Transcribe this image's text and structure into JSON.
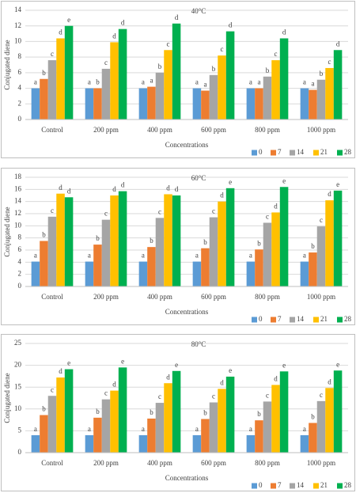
{
  "chart_data": [
    {
      "type": "bar",
      "title": "40°C",
      "y_label": "Conjugated diene",
      "x_label": "Concentrations",
      "categories": [
        "Control",
        "200 ppm",
        "400 ppm",
        "600 ppm",
        "800 ppm",
        "1000 ppm"
      ],
      "ylim": [
        0,
        14
      ],
      "yticks": [
        0,
        2,
        4,
        6,
        8,
        10,
        12,
        14
      ],
      "grid": true,
      "legend": "bottom-right",
      "series": [
        {
          "name": "0",
          "color": "#5b9bd5",
          "values": [
            4.0,
            4.0,
            4.0,
            4.0,
            4.0,
            4.0
          ],
          "letters": [
            "a",
            "a",
            "a",
            "a",
            "a",
            "a"
          ]
        },
        {
          "name": "7",
          "color": "#ed7d31",
          "values": [
            5.2,
            4.0,
            4.2,
            3.7,
            4.0,
            3.8
          ],
          "letters": [
            "b",
            "b",
            "a",
            "a",
            "a",
            "a"
          ]
        },
        {
          "name": "14",
          "color": "#a5a5a5",
          "values": [
            7.6,
            6.5,
            6.0,
            5.7,
            5.5,
            5.1
          ],
          "letters": [
            "c",
            "c",
            "b",
            "b",
            "b",
            "b"
          ]
        },
        {
          "name": "21",
          "color": "#ffc000",
          "values": [
            10.4,
            9.9,
            8.9,
            8.2,
            7.6,
            6.6
          ],
          "letters": [
            "d",
            "d",
            "c",
            "c",
            "c",
            "c"
          ]
        },
        {
          "name": "28",
          "color": "#00b050",
          "values": [
            12.0,
            11.6,
            12.3,
            11.3,
            10.4,
            8.9
          ],
          "letters": [
            "e",
            "d",
            "d",
            "d",
            "d",
            "d"
          ]
        }
      ]
    },
    {
      "type": "bar",
      "title": "60°C",
      "y_label": "Conjugated diene",
      "x_label": "Concentrations",
      "categories": [
        "Control",
        "200 ppm",
        "400 ppm",
        "600 ppm",
        "800 ppm",
        "1000 ppm"
      ],
      "ylim": [
        0,
        18
      ],
      "yticks": [
        0,
        2,
        4,
        6,
        8,
        10,
        12,
        14,
        16,
        18
      ],
      "grid": true,
      "legend": "bottom-right",
      "series": [
        {
          "name": "0",
          "color": "#5b9bd5",
          "values": [
            4.1,
            4.1,
            4.1,
            4.1,
            4.1,
            4.1
          ],
          "letters": [
            "a",
            "a",
            "a",
            "a",
            "a",
            "a"
          ]
        },
        {
          "name": "7",
          "color": "#ed7d31",
          "values": [
            7.5,
            6.9,
            6.5,
            6.3,
            6.1,
            5.6
          ],
          "letters": [
            "b",
            "b",
            "b",
            "b",
            "b",
            "b"
          ]
        },
        {
          "name": "14",
          "color": "#a5a5a5",
          "values": [
            11.5,
            11.0,
            11.3,
            11.4,
            10.5,
            9.9
          ],
          "letters": [
            "c",
            "c",
            "c",
            "c",
            "c",
            "c"
          ]
        },
        {
          "name": "21",
          "color": "#ffc000",
          "values": [
            15.3,
            15.0,
            15.2,
            14.0,
            12.2,
            14.2
          ],
          "letters": [
            "d",
            "d",
            "d",
            "d",
            "d",
            "d"
          ]
        },
        {
          "name": "28",
          "color": "#00b050",
          "values": [
            14.7,
            15.7,
            15.0,
            16.2,
            16.4,
            15.8
          ],
          "letters": [
            "d",
            "d",
            "d",
            "e",
            "e",
            "e"
          ]
        }
      ]
    },
    {
      "type": "bar",
      "title": "80°C",
      "y_label": "Conjugated diene",
      "x_label": "Concentrations",
      "categories": [
        "Control",
        "200 ppm",
        "400 ppm",
        "600 ppm",
        "800 ppm",
        "1000 ppm"
      ],
      "ylim": [
        0,
        25
      ],
      "yticks": [
        0,
        5,
        10,
        15,
        20,
        25
      ],
      "grid": true,
      "legend": "bottom-right",
      "series": [
        {
          "name": "0",
          "color": "#5b9bd5",
          "values": [
            4.0,
            4.0,
            4.0,
            4.0,
            4.0,
            4.0
          ],
          "letters": [
            "a",
            "a",
            "a",
            "a",
            "a",
            "a"
          ]
        },
        {
          "name": "7",
          "color": "#ed7d31",
          "values": [
            8.6,
            8.0,
            7.8,
            7.7,
            7.4,
            6.8
          ],
          "letters": [
            "b",
            "b",
            "b",
            "b",
            "b",
            "b"
          ]
        },
        {
          "name": "14",
          "color": "#a5a5a5",
          "values": [
            13.0,
            12.2,
            11.4,
            11.5,
            11.7,
            11.8
          ],
          "letters": [
            "c",
            "c",
            "c",
            "c",
            "c",
            "c"
          ]
        },
        {
          "name": "21",
          "color": "#ffc000",
          "values": [
            17.2,
            14.2,
            15.9,
            14.6,
            15.5,
            14.8
          ],
          "letters": [
            "d",
            "d",
            "d",
            "d",
            "d",
            "d"
          ]
        },
        {
          "name": "28",
          "color": "#00b050",
          "values": [
            19.1,
            19.5,
            18.7,
            17.4,
            18.6,
            18.8
          ],
          "letters": [
            "e",
            "e",
            "e",
            "e",
            "e",
            "e"
          ]
        }
      ]
    }
  ]
}
